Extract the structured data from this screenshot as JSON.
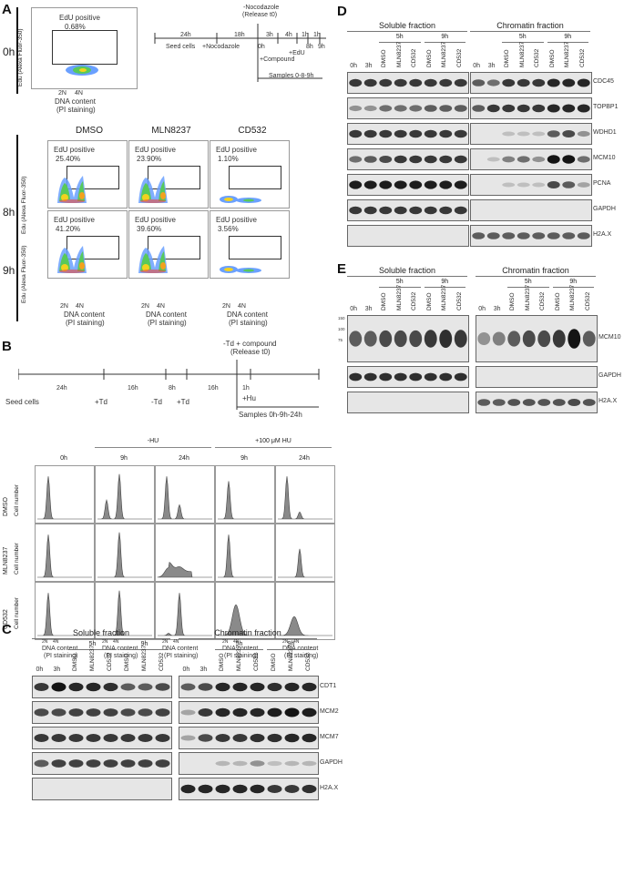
{
  "panels": {
    "A": "A",
    "B": "B",
    "C": "C",
    "D": "D",
    "E": "E"
  },
  "panelA": {
    "time_0h": "0h",
    "time_8h": "8h",
    "time_9h": "9h",
    "ylabel": "Edu (Alexa Fluor-350)",
    "xlabel": "DNA content",
    "xlabel2": "(PI staining)",
    "ticks": [
      "2N",
      "4N"
    ],
    "yticks": [
      "10⁴",
      "10³",
      "10²",
      "0",
      "-10²",
      "-10³"
    ],
    "gate_label": "EdU positive",
    "conditions": [
      "DMSO",
      "MLN8237",
      "CD532"
    ],
    "pct_0h": "0.68%",
    "pct_8h": [
      "25.40%",
      "23.90%",
      "1.10%"
    ],
    "pct_9h": [
      "41.20%",
      "39.60%",
      "3.56%"
    ],
    "timeline": {
      "top": "-Nocodazole",
      "top2": "(Release t0)",
      "seed": "Seed cells",
      "noco": "+Nocodazole",
      "compound": "+Compound",
      "edu": "+EdU",
      "samples": "Samples 0-8-9h",
      "intervals": [
        "24h",
        "18h",
        "0h",
        "3h",
        "4h",
        "1h",
        "1h"
      ],
      "marks": [
        "8h",
        "9h"
      ]
    }
  },
  "panelB": {
    "timeline": {
      "top": "-Td + compound",
      "top2": "(Release t0)",
      "seed": "Seed cells",
      "td1": "+Td",
      "td2": "-Td",
      "td3": "+Td",
      "hu": "+Hu",
      "intervals": [
        "24h",
        "16h",
        "8h",
        "16h",
        "1h"
      ],
      "samples": "Samples 0h-9h-24h"
    },
    "group_minus": "-HU",
    "group_plus": "+100 μM HU",
    "cols": [
      "0h",
      "9h",
      "24h",
      "9h",
      "24h"
    ],
    "rows": [
      "DMSO",
      "MLN8237",
      "CD532"
    ],
    "ylabel": "Cell number",
    "xlabel": "DNA content",
    "xlabel2": "(PI staining)",
    "ticks": [
      "2N",
      "4N"
    ]
  },
  "panelC": {
    "soluble": "Soluble fraction",
    "chromatin": "Chromatin fraction",
    "time5": "5h",
    "time9": "9h",
    "lanes": [
      "0h",
      "3h",
      "DMSO",
      "MLN8237",
      "CD532",
      "DMSO",
      "MLN8237",
      "CD532"
    ],
    "proteins": [
      "CDT1",
      "MCM2",
      "MCM7",
      "GAPDH",
      "H2A.X"
    ]
  },
  "panelD": {
    "soluble": "Soluble fraction",
    "chromatin": "Chromatin fraction",
    "time5": "5h",
    "time9": "9h",
    "lanes": [
      "0h",
      "3h",
      "DMSO",
      "MLN8237",
      "CD532",
      "DMSO",
      "MLN8237",
      "CD532"
    ],
    "proteins": [
      "CDC45",
      "TOPBP1",
      "WDHD1",
      "MCM10",
      "PCNA",
      "GAPDH",
      "H2A.X"
    ]
  },
  "panelE": {
    "soluble": "Soluble fraction",
    "chromatin": "Chromatin fraction",
    "time5": "5h",
    "time9": "9h",
    "lanes": [
      "0h",
      "3h",
      "DMSO",
      "MLN8237",
      "CD532",
      "DMSO",
      "MLN8237",
      "CD532"
    ],
    "proteins": [
      "MCM10",
      "GAPDH",
      "H2A.X"
    ],
    "mw": [
      "150",
      "100",
      "75"
    ]
  }
}
